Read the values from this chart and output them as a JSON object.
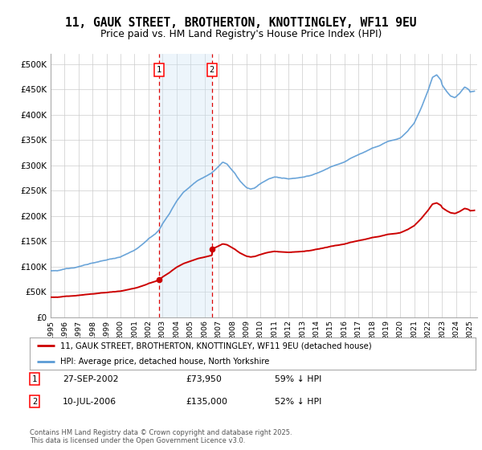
{
  "title": "11, GAUK STREET, BROTHERTON, KNOTTINGLEY, WF11 9EU",
  "subtitle": "Price paid vs. HM Land Registry's House Price Index (HPI)",
  "ylim": [
    0,
    520000
  ],
  "xlim_start": 1995.0,
  "xlim_end": 2025.5,
  "yticks": [
    0,
    50000,
    100000,
    150000,
    200000,
    250000,
    300000,
    350000,
    400000,
    450000,
    500000
  ],
  "ytick_labels": [
    "£0",
    "£50K",
    "£100K",
    "£150K",
    "£200K",
    "£250K",
    "£300K",
    "£350K",
    "£400K",
    "£450K",
    "£500K"
  ],
  "xticks": [
    1995,
    1996,
    1997,
    1998,
    1999,
    2000,
    2001,
    2002,
    2003,
    2004,
    2005,
    2006,
    2007,
    2008,
    2009,
    2010,
    2011,
    2012,
    2013,
    2014,
    2015,
    2016,
    2017,
    2018,
    2019,
    2020,
    2021,
    2022,
    2023,
    2024,
    2025
  ],
  "hpi_color": "#5b9bd5",
  "price_color": "#cc0000",
  "sale1_date": 2002.74,
  "sale1_price": 73950,
  "sale2_date": 2006.53,
  "sale2_price": 135000,
  "vline_color": "#dd0000",
  "shade_color": "#cce4f5",
  "legend_line1": "11, GAUK STREET, BROTHERTON, KNOTTINGLEY, WF11 9EU (detached house)",
  "legend_line2": "HPI: Average price, detached house, North Yorkshire",
  "table_1_date": "27-SEP-2002",
  "table_1_price": "£73,950",
  "table_1_hpi": "59% ↓ HPI",
  "table_2_date": "10-JUL-2006",
  "table_2_price": "£135,000",
  "table_2_hpi": "52% ↓ HPI",
  "footer": "Contains HM Land Registry data © Crown copyright and database right 2025.\nThis data is licensed under the Open Government Licence v3.0.",
  "bg_color": "#ffffff",
  "grid_color": "#cccccc"
}
